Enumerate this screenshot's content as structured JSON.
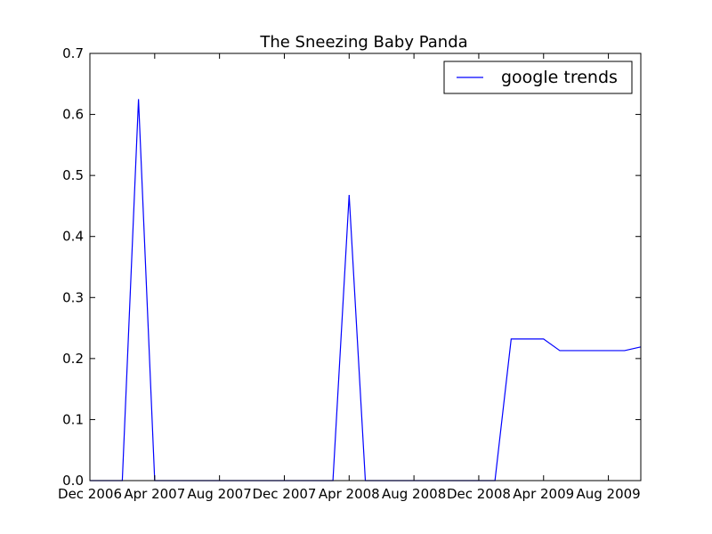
{
  "chart_data": {
    "type": "line",
    "title": "The Sneezing Baby Panda",
    "xlabel": "",
    "ylabel": "",
    "xlim": [
      "2006-12",
      "2009-10"
    ],
    "ylim": [
      0,
      0.7
    ],
    "x_ticks": [
      "2006-12",
      "2007-04",
      "2007-08",
      "2007-12",
      "2008-04",
      "2008-08",
      "2008-12",
      "2009-04",
      "2009-08"
    ],
    "x_tick_labels": [
      "Dec 2006",
      "Apr 2007",
      "Aug 2007",
      "Dec 2007",
      "Apr 2008",
      "Aug 2008",
      "Dec 2008",
      "Apr 2009",
      "Aug 2009"
    ],
    "y_ticks": [
      0.0,
      0.1,
      0.2,
      0.3,
      0.4,
      0.5,
      0.6,
      0.7
    ],
    "y_tick_labels": [
      "0.0",
      "0.1",
      "0.2",
      "0.3",
      "0.4",
      "0.5",
      "0.6",
      "0.7"
    ],
    "grid": false,
    "legend_position": "top-right",
    "series": [
      {
        "name": "google trends",
        "color": "#0000ff",
        "x": [
          "2006-12",
          "2007-01",
          "2007-02",
          "2007-03",
          "2007-04",
          "2007-05",
          "2007-06",
          "2007-07",
          "2007-08",
          "2007-09",
          "2007-10",
          "2007-11",
          "2007-12",
          "2008-01",
          "2008-02",
          "2008-03",
          "2008-04",
          "2008-05",
          "2008-06",
          "2008-07",
          "2008-08",
          "2008-09",
          "2008-10",
          "2008-11",
          "2008-12",
          "2009-01",
          "2009-02",
          "2009-03",
          "2009-04",
          "2009-05",
          "2009-06",
          "2009-07",
          "2009-08",
          "2009-09",
          "2009-10"
        ],
        "values": [
          0,
          0,
          0,
          0.625,
          0,
          0,
          0,
          0,
          0,
          0,
          0,
          0,
          0,
          0,
          0,
          0,
          0.468,
          0,
          0,
          0,
          0,
          0,
          0,
          0,
          0,
          0,
          0.232,
          0.232,
          0.232,
          0.213,
          0.213,
          0.213,
          0.213,
          0.213,
          0.219
        ]
      }
    ]
  }
}
